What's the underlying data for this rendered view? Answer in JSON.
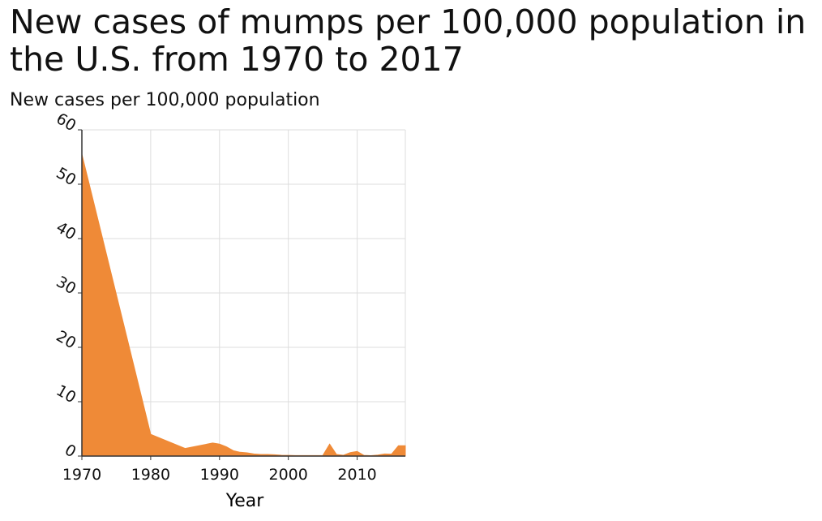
{
  "title": "New cases of mumps per 100,000 population in the U.S. from 1970 to 2017",
  "colors": {
    "area": "#ef8a37",
    "grid": "#dddddd",
    "axis": "#333333",
    "text": "#111111"
  },
  "chart_data": {
    "type": "area",
    "title": "New cases of mumps per 100,000 population in the U.S. from 1970 to 2017",
    "xlabel": "Year",
    "ylabel": "New cases per 100,000 population",
    "xlim": [
      1970,
      2017
    ],
    "ylim": [
      0,
      60
    ],
    "xticks": [
      1970,
      1980,
      1990,
      2000,
      2010
    ],
    "xtick_labels": [
      "1970",
      "1980",
      "1990",
      "2000",
      "2010"
    ],
    "yticks": [
      0,
      10,
      20,
      30,
      40,
      50,
      60
    ],
    "ytick_labels": [
      "0",
      "10",
      "20",
      "30",
      "40",
      "50",
      "60"
    ],
    "grid": true,
    "legend": false,
    "series": [
      {
        "x": [
          1970,
          1980,
          1985,
          1989,
          1990,
          1991,
          1992,
          1993,
          1994,
          1995,
          1996,
          1997,
          1998,
          1999,
          2000,
          2001,
          2002,
          2003,
          2004,
          2005,
          2006,
          2007,
          2008,
          2009,
          2010,
          2011,
          2012,
          2013,
          2014,
          2015,
          2016,
          2017
        ],
        "y": [
          55.5,
          4.0,
          1.4,
          2.4,
          2.2,
          1.7,
          1.0,
          0.7,
          0.6,
          0.4,
          0.3,
          0.3,
          0.25,
          0.14,
          0.13,
          0.1,
          0.1,
          0.1,
          0.09,
          0.1,
          2.2,
          0.3,
          0.15,
          0.64,
          0.86,
          0.13,
          0.07,
          0.18,
          0.4,
          0.36,
          1.9,
          1.9
        ]
      }
    ]
  }
}
